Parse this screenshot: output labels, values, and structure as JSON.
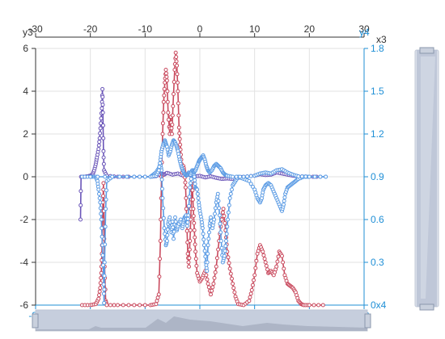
{
  "chart_data": {
    "type": "line",
    "axes": {
      "x_bottom": {
        "min": -30,
        "max": 30,
        "ticks": [
          -30,
          -20,
          -10,
          0,
          10,
          20,
          30
        ]
      },
      "x_top": {
        "name": "x3",
        "min": -30,
        "max": 30,
        "ticks": [
          -30,
          -20,
          -10,
          0,
          10,
          20,
          30
        ]
      },
      "y_left": {
        "name": "y3",
        "min": -6,
        "max": 6,
        "ticks": [
          -6,
          -4,
          -2,
          0,
          2,
          4,
          6
        ]
      },
      "y_right": {
        "name": "y4",
        "min": 0,
        "max": 1.8,
        "ticks": [
          "0x4",
          "0.3",
          "0.6",
          "0.9",
          "1.2",
          "1.5",
          "1.8"
        ]
      }
    },
    "grid": true,
    "colors": {
      "purple": "#6a55b8",
      "red": "#c94a5e",
      "blue": "#5b9be4",
      "accent": "#1f8fd6"
    },
    "series": [
      {
        "color": "#6a55b8",
        "axis": "left",
        "points": [
          [
            -21.8,
            -2
          ],
          [
            -21.7,
            0
          ],
          [
            -21,
            0
          ],
          [
            -20.5,
            0.02
          ],
          [
            -20,
            0.05
          ],
          [
            -19.6,
            0.1
          ],
          [
            -19.3,
            0.3
          ],
          [
            -19,
            0.6
          ],
          [
            -18.8,
            0.9
          ],
          [
            -18.5,
            1.3
          ],
          [
            -18.3,
            1.8
          ],
          [
            -18.1,
            2.5
          ],
          [
            -17.9,
            3.2
          ],
          [
            -17.8,
            4.1
          ],
          [
            -17.7,
            3.0
          ],
          [
            -17.6,
            1.2
          ],
          [
            -17.5,
            0.3
          ],
          [
            -17,
            0.05
          ],
          [
            -15,
            0
          ],
          [
            -12,
            0
          ],
          [
            -9,
            0
          ],
          [
            -8,
            0.03
          ],
          [
            -7,
            0.15
          ],
          [
            -6.5,
            0.1
          ],
          [
            -6,
            0.18
          ],
          [
            -5,
            0.1
          ],
          [
            -4,
            0.15
          ],
          [
            -3,
            0.05
          ],
          [
            -2,
            0.1
          ],
          [
            -1,
            0.02
          ],
          [
            0,
            0.04
          ],
          [
            1,
            -0.03
          ],
          [
            2,
            0.02
          ],
          [
            3,
            -0.05
          ],
          [
            4,
            -0.1
          ],
          [
            5,
            -0.08
          ],
          [
            6,
            -0.1
          ],
          [
            7,
            -0.05
          ],
          [
            8,
            0
          ],
          [
            10,
            0.05
          ],
          [
            11,
            0.12
          ],
          [
            12,
            0.08
          ],
          [
            13,
            0.1
          ],
          [
            14,
            0.2
          ],
          [
            15,
            0.15
          ],
          [
            16,
            0.1
          ],
          [
            17,
            0.05
          ],
          [
            18,
            0.02
          ],
          [
            20,
            0
          ],
          [
            22,
            0
          ]
        ]
      },
      {
        "color": "#c94a5e",
        "axis": "left",
        "points": [
          [
            -21.5,
            -6
          ],
          [
            -20,
            -6
          ],
          [
            -19,
            -5.95
          ],
          [
            -18.5,
            -5.7
          ],
          [
            -18.2,
            -5.2
          ],
          [
            -18,
            -4.5
          ],
          [
            -17.9,
            -3.6
          ],
          [
            -17.8,
            -2.4
          ],
          [
            -17.7,
            -1.2
          ],
          [
            -17.6,
            -0.3
          ],
          [
            -17.4,
            -4.2
          ],
          [
            -17.2,
            -5.8
          ],
          [
            -17,
            -6
          ],
          [
            -15,
            -6
          ],
          [
            -12,
            -6
          ],
          [
            -9,
            -6
          ],
          [
            -8,
            -5.95
          ],
          [
            -7.5,
            -5.5
          ],
          [
            -7.2,
            -3
          ],
          [
            -7,
            0
          ],
          [
            -6.8,
            2
          ],
          [
            -6.6,
            3.5
          ],
          [
            -6.4,
            4.4
          ],
          [
            -6.2,
            5.0
          ],
          [
            -6,
            4.5
          ],
          [
            -5.8,
            3.0
          ],
          [
            -5.5,
            2.0
          ],
          [
            -5.3,
            2.8
          ],
          [
            -5.1,
            2.0
          ],
          [
            -4.9,
            3.3
          ],
          [
            -4.6,
            5.0
          ],
          [
            -4.4,
            5.8
          ],
          [
            -4.2,
            5.2
          ],
          [
            -4.0,
            4.0
          ],
          [
            -3.8,
            2.3
          ],
          [
            -3.6,
            1.5
          ],
          [
            -3.4,
            0.8
          ],
          [
            -3.2,
            0.2
          ],
          [
            -3.0,
            0.5
          ],
          [
            -2.8,
            0.2
          ],
          [
            -2.6,
            -0.5
          ],
          [
            -2.4,
            -2.0
          ],
          [
            -2.2,
            -3.6
          ],
          [
            -2.0,
            -4.2
          ],
          [
            -1.8,
            -3.0
          ],
          [
            -1.6,
            -1.5
          ],
          [
            -1.4,
            -0.2
          ],
          [
            -1.2,
            -1.5
          ],
          [
            -1.0,
            -2.5
          ],
          [
            -0.8,
            -3.5
          ],
          [
            -0.5,
            -4.5
          ],
          [
            0,
            -4.9
          ],
          [
            0.5,
            -4.7
          ],
          [
            1,
            -4.4
          ],
          [
            1.5,
            -5.0
          ],
          [
            2,
            -5.5
          ],
          [
            2.5,
            -5.0
          ],
          [
            3,
            -4.2
          ],
          [
            3.5,
            -3.0
          ],
          [
            4,
            -2.0
          ],
          [
            4.3,
            -1.5
          ],
          [
            4.7,
            -2.5
          ],
          [
            5,
            -3.5
          ],
          [
            5.5,
            -4.3
          ],
          [
            6,
            -5.0
          ],
          [
            6.5,
            -5.6
          ],
          [
            7,
            -5.95
          ],
          [
            8,
            -6
          ],
          [
            9,
            -5.8
          ],
          [
            9.5,
            -5.3
          ],
          [
            10,
            -4.6
          ],
          [
            10.5,
            -3.6
          ],
          [
            11,
            -3.2
          ],
          [
            11.5,
            -3.5
          ],
          [
            12,
            -4.0
          ],
          [
            12.5,
            -4.5
          ],
          [
            13,
            -4.4
          ],
          [
            13.5,
            -4.6
          ],
          [
            14,
            -4.2
          ],
          [
            14.5,
            -3.5
          ],
          [
            15,
            -3.7
          ],
          [
            15.5,
            -4.6
          ],
          [
            16,
            -5.0
          ],
          [
            16.5,
            -5.1
          ],
          [
            17,
            -5.2
          ],
          [
            17.5,
            -5.4
          ],
          [
            18,
            -5.8
          ],
          [
            18.5,
            -5.95
          ],
          [
            19,
            -6
          ],
          [
            20,
            -6
          ],
          [
            22.5,
            -6
          ]
        ]
      },
      {
        "color": "#5b9be4",
        "axis": "left",
        "points": [
          [
            -21.5,
            0
          ],
          [
            -20,
            0
          ],
          [
            -19,
            0
          ],
          [
            -18.7,
            -0.2
          ],
          [
            -18.5,
            -0.6
          ],
          [
            -18.2,
            -1.2
          ],
          [
            -18,
            -2.0
          ],
          [
            -17.8,
            -3.2
          ],
          [
            -17.6,
            -4.6
          ],
          [
            -17.5,
            -5.9
          ],
          [
            -17.4,
            -4.0
          ],
          [
            -17.2,
            -1.5
          ],
          [
            -17,
            -0.2
          ],
          [
            -16,
            0
          ],
          [
            -12,
            0
          ],
          [
            -9,
            0
          ],
          [
            -8.5,
            0.1
          ],
          [
            -8,
            0.2
          ],
          [
            -7.5,
            0.4
          ],
          [
            -7.2,
            0.6
          ],
          [
            -7,
            0.3
          ],
          [
            -6.8,
            -1.0
          ],
          [
            -6.5,
            -2.4
          ],
          [
            -6.2,
            -3.2
          ],
          [
            -6,
            -3.0
          ],
          [
            -5.8,
            -2.2
          ],
          [
            -5.5,
            -1.9
          ],
          [
            -5.2,
            -2.6
          ],
          [
            -5,
            -2.1
          ],
          [
            -4.8,
            -2.9
          ],
          [
            -4.5,
            -1.9
          ],
          [
            -4.2,
            -2.5
          ],
          [
            -4,
            -2.3
          ],
          [
            -3.5,
            -2.0
          ],
          [
            -3.2,
            -2.4
          ],
          [
            -3.0,
            -2.1
          ],
          [
            -2.8,
            -1.9
          ],
          [
            -2.5,
            -1.8
          ],
          [
            -2.3,
            -2.3
          ],
          [
            -2.1,
            -1.8
          ],
          [
            -1.8,
            -0.5
          ],
          [
            -1.5,
            0.1
          ],
          [
            -1.2,
            0.3
          ],
          [
            -1.0,
            0
          ],
          [
            -0.8,
            -0.5
          ],
          [
            -0.5,
            -0.6
          ],
          [
            -0.2,
            -1.2
          ],
          [
            0,
            -1.6
          ],
          [
            0.3,
            -2.0
          ],
          [
            0.5,
            -2.4
          ],
          [
            0.8,
            -3.2
          ],
          [
            1.1,
            -4.0
          ],
          [
            1.3,
            -4.4
          ],
          [
            1.5,
            -3.2
          ],
          [
            1.8,
            -2.3
          ],
          [
            2,
            -1.9
          ],
          [
            2.3,
            -2.4
          ],
          [
            2.6,
            -2.0
          ],
          [
            3,
            -1.2
          ],
          [
            3.3,
            -0.8
          ],
          [
            3.6,
            -1.8
          ],
          [
            3.9,
            -3.0
          ],
          [
            4.2,
            -4.0
          ],
          [
            4.5,
            -3.7
          ],
          [
            4.8,
            -3.0
          ],
          [
            5.1,
            -2.0
          ],
          [
            5.5,
            -1.0
          ],
          [
            6,
            -0.4
          ],
          [
            6.5,
            -0.2
          ],
          [
            7,
            0
          ],
          [
            8,
            -0.1
          ],
          [
            9,
            -0.2
          ],
          [
            10,
            -0.6
          ],
          [
            10.5,
            -1.0
          ],
          [
            11,
            -1.2
          ],
          [
            11.3,
            -1.0
          ],
          [
            11.6,
            -0.6
          ],
          [
            12,
            -0.4
          ],
          [
            12.5,
            -0.3
          ],
          [
            13,
            -0.4
          ],
          [
            13.5,
            -0.7
          ],
          [
            14,
            -1.0
          ],
          [
            14.5,
            -1.3
          ],
          [
            15,
            -1.6
          ],
          [
            15.3,
            -1.3
          ],
          [
            15.6,
            -0.8
          ],
          [
            16,
            -0.5
          ],
          [
            16.5,
            -0.4
          ],
          [
            17,
            -0.3
          ],
          [
            17.5,
            -0.2
          ],
          [
            18,
            -0.1
          ],
          [
            19,
            0
          ],
          [
            20,
            0
          ],
          [
            23,
            0
          ]
        ]
      },
      {
        "color": "#5b9be4",
        "axis": "left",
        "points": [
          [
            -20,
            0
          ],
          [
            -16,
            0
          ],
          [
            -12,
            0
          ],
          [
            -9,
            0
          ],
          [
            -8,
            0.05
          ],
          [
            -7.5,
            0.3
          ],
          [
            -7.2,
            0.8
          ],
          [
            -7,
            1.2
          ],
          [
            -6.7,
            1.5
          ],
          [
            -6.4,
            1.7
          ],
          [
            -6.2,
            1.55
          ],
          [
            -6,
            1.4
          ],
          [
            -5.7,
            1.0
          ],
          [
            -5.4,
            1.2
          ],
          [
            -5.1,
            1.5
          ],
          [
            -4.8,
            1.7
          ],
          [
            -4.5,
            1.6
          ],
          [
            -4.2,
            1.4
          ],
          [
            -4.0,
            1.2
          ],
          [
            -3.7,
            0.8
          ],
          [
            -3.4,
            0.5
          ],
          [
            -3.1,
            0.3
          ],
          [
            -2.8,
            0.15
          ],
          [
            -2.5,
            0.05
          ],
          [
            -2.2,
            0.1
          ],
          [
            -2.0,
            0.2
          ],
          [
            -1.7,
            0.1
          ],
          [
            -1.4,
            0.3
          ],
          [
            -1.1,
            0.2
          ],
          [
            -0.8,
            0.3
          ],
          [
            -0.5,
            0.5
          ],
          [
            -0.2,
            0.7
          ],
          [
            0,
            0.8
          ],
          [
            0.3,
            0.9
          ],
          [
            0.6,
            1.0
          ],
          [
            0.9,
            0.8
          ],
          [
            1.2,
            0.5
          ],
          [
            1.5,
            0.3
          ],
          [
            1.8,
            0.2
          ],
          [
            2.2,
            0.3
          ],
          [
            2.6,
            0.5
          ],
          [
            3,
            0.6
          ],
          [
            3.4,
            0.5
          ],
          [
            3.8,
            0.4
          ],
          [
            4.2,
            0.2
          ],
          [
            4.6,
            0.1
          ],
          [
            5,
            0.05
          ],
          [
            6,
            0
          ],
          [
            8,
            0
          ],
          [
            10,
            0.05
          ],
          [
            11,
            0.15
          ],
          [
            12,
            0.2
          ],
          [
            13,
            0.15
          ],
          [
            14,
            0.3
          ],
          [
            15,
            0.35
          ],
          [
            16,
            0.2
          ],
          [
            17,
            0.1
          ],
          [
            18,
            0.02
          ],
          [
            20,
            0
          ],
          [
            23,
            0
          ]
        ]
      }
    ]
  }
}
